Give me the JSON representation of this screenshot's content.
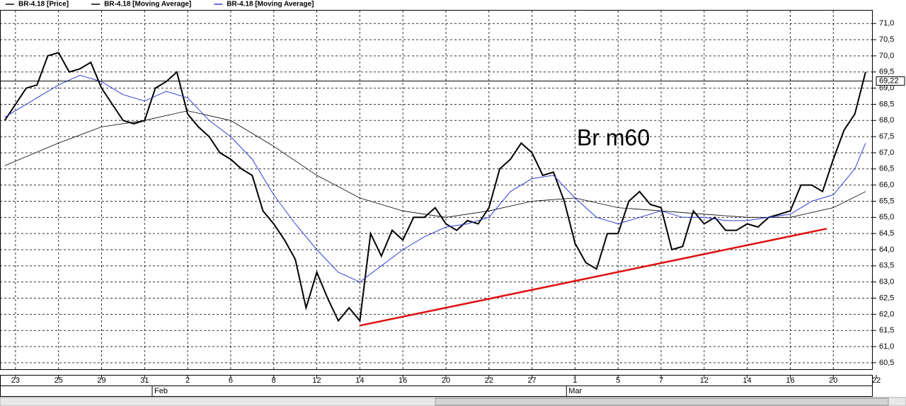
{
  "chart_data": {
    "type": "line",
    "annotation": "Br m60",
    "xlim": [
      -0.72,
      39.8
    ],
    "ylim": [
      60.3,
      71.4
    ],
    "xticks": [
      {
        "value": 0,
        "label": "23"
      },
      {
        "value": 2,
        "label": "25"
      },
      {
        "value": 4,
        "label": "29"
      },
      {
        "value": 6,
        "label": "31"
      },
      {
        "value": 8,
        "label": "2"
      },
      {
        "value": 10,
        "label": "6"
      },
      {
        "value": 12,
        "label": "8"
      },
      {
        "value": 14,
        "label": "12"
      },
      {
        "value": 16,
        "label": "14"
      },
      {
        "value": 18,
        "label": "16"
      },
      {
        "value": 20,
        "label": "20"
      },
      {
        "value": 22,
        "label": "22"
      },
      {
        "value": 24,
        "label": "27"
      },
      {
        "value": 26,
        "label": "1"
      },
      {
        "value": 28,
        "label": "5"
      },
      {
        "value": 30,
        "label": "7"
      },
      {
        "value": 32,
        "label": "12"
      },
      {
        "value": 34,
        "label": "14"
      },
      {
        "value": 36,
        "label": "16"
      },
      {
        "value": 38,
        "label": "20"
      },
      {
        "value": 40,
        "label": "22"
      }
    ],
    "month_ticks": [
      {
        "value": 6.45,
        "label": "Feb"
      },
      {
        "value": 25.7,
        "label": "Mar"
      }
    ],
    "yticks": [
      {
        "value": 60.5,
        "label": "60,5"
      },
      {
        "value": 61,
        "label": "61,0"
      },
      {
        "value": 61.5,
        "label": "61,5"
      },
      {
        "value": 62,
        "label": "62,0"
      },
      {
        "value": 62.5,
        "label": "62,5"
      },
      {
        "value": 63,
        "label": "63,0"
      },
      {
        "value": 63.5,
        "label": "63,5"
      },
      {
        "value": 64,
        "label": "64,0"
      },
      {
        "value": 64.5,
        "label": "64,5"
      },
      {
        "value": 65,
        "label": "65,0"
      },
      {
        "value": 65.5,
        "label": "65,5"
      },
      {
        "value": 66,
        "label": "66,0"
      },
      {
        "value": 66.5,
        "label": "66,5"
      },
      {
        "value": 67,
        "label": "67,0"
      },
      {
        "value": 67.5,
        "label": "67,5"
      },
      {
        "value": 68,
        "label": "68,0"
      },
      {
        "value": 68.5,
        "label": "68,5"
      },
      {
        "value": 69,
        "label": "69,0"
      },
      {
        "value": 69.5,
        "label": "69,5"
      },
      {
        "value": 70,
        "label": "70,0"
      },
      {
        "value": 70.5,
        "label": "70,5"
      },
      {
        "value": 71,
        "label": "71,0"
      }
    ],
    "grid": true,
    "last_price": {
      "value": 69.22,
      "label": "69,22"
    },
    "series": [
      {
        "name": "BR-4.18 [Price]",
        "color": "#000000",
        "width": 2,
        "x": [
          -0.5,
          0,
          0.5,
          1,
          1.5,
          2,
          2.5,
          3,
          3.5,
          4,
          4.5,
          5,
          5.5,
          6,
          6.5,
          7,
          7.5,
          8,
          8.5,
          9,
          9.5,
          10,
          10.5,
          11,
          11.5,
          12,
          12.5,
          13,
          13.5,
          14,
          14.5,
          15,
          15.5,
          16,
          16.5,
          17,
          17.5,
          18,
          18.5,
          19,
          19.5,
          20,
          20.5,
          21,
          21.5,
          22,
          22.5,
          23,
          23.5,
          24,
          24.5,
          25,
          25.5,
          26,
          26.5,
          27,
          27.5,
          28,
          28.5,
          29,
          29.5,
          30,
          30.5,
          31,
          31.5,
          32,
          32.5,
          33,
          33.5,
          34,
          34.5,
          35,
          35.5,
          36,
          36.5,
          37,
          37.5,
          38,
          38.5,
          39,
          39.5
        ],
        "values": [
          68.0,
          68.5,
          69.0,
          69.1,
          70.0,
          70.1,
          69.5,
          69.6,
          69.8,
          69.0,
          68.5,
          68.0,
          67.9,
          68.0,
          69.0,
          69.2,
          69.5,
          68.2,
          67.8,
          67.5,
          67.0,
          66.8,
          66.5,
          66.3,
          65.2,
          64.8,
          64.3,
          63.7,
          62.2,
          63.3,
          62.5,
          61.8,
          62.2,
          61.8,
          64.5,
          63.8,
          64.6,
          64.3,
          65.0,
          65.0,
          65.3,
          64.8,
          64.6,
          64.9,
          64.8,
          65.3,
          66.5,
          66.8,
          67.3,
          67.0,
          66.3,
          66.4,
          65.5,
          64.2,
          63.6,
          63.4,
          64.5,
          64.5,
          65.5,
          65.8,
          65.4,
          65.3,
          64.0,
          64.1,
          65.2,
          64.8,
          65.0,
          64.6,
          64.6,
          64.8,
          64.7,
          65.0,
          65.1,
          65.2,
          66.0,
          66.0,
          65.8,
          66.8,
          67.7,
          68.2,
          69.5
        ]
      },
      {
        "name": "BR-4.18 [Moving Average]",
        "color": "#000000",
        "width": 0.8,
        "x": [
          -0.5,
          2,
          4,
          6,
          8,
          10,
          12,
          14,
          16,
          18,
          20,
          22,
          24,
          26,
          28,
          30,
          32,
          34,
          36,
          38,
          39.5
        ],
        "values": [
          66.6,
          67.3,
          67.8,
          68.0,
          68.3,
          68.0,
          67.2,
          66.3,
          65.6,
          65.2,
          65.0,
          65.2,
          65.5,
          65.6,
          65.3,
          65.2,
          65.1,
          65.0,
          65.0,
          65.3,
          65.8
        ]
      },
      {
        "name": "BR-4.18 [Moving Average]",
        "color": "#2f3fd0",
        "width": 1,
        "x": [
          -0.5,
          0,
          1,
          2,
          3,
          4,
          5,
          6,
          7,
          8,
          9,
          10,
          11,
          12,
          13,
          14,
          15,
          16,
          17,
          18,
          19,
          20,
          21,
          22,
          23,
          24,
          25,
          26,
          27,
          28,
          29,
          30,
          31,
          32,
          33,
          34,
          35,
          36,
          37,
          38,
          39,
          39.5
        ],
        "values": [
          68.1,
          68.3,
          68.7,
          69.1,
          69.4,
          69.2,
          68.8,
          68.6,
          68.9,
          68.7,
          68.0,
          67.5,
          66.8,
          65.7,
          64.8,
          64.0,
          63.3,
          63.0,
          63.5,
          64.0,
          64.4,
          64.7,
          64.8,
          65.0,
          65.8,
          66.2,
          66.3,
          65.6,
          65.0,
          64.8,
          65.0,
          65.2,
          65.0,
          65.0,
          64.9,
          64.9,
          65.0,
          65.1,
          65.5,
          65.7,
          66.5,
          67.3
        ]
      }
    ],
    "trendline": {
      "color": "#e01010",
      "x": [
        16,
        37.7
      ],
      "values": [
        61.65,
        64.65
      ]
    }
  }
}
